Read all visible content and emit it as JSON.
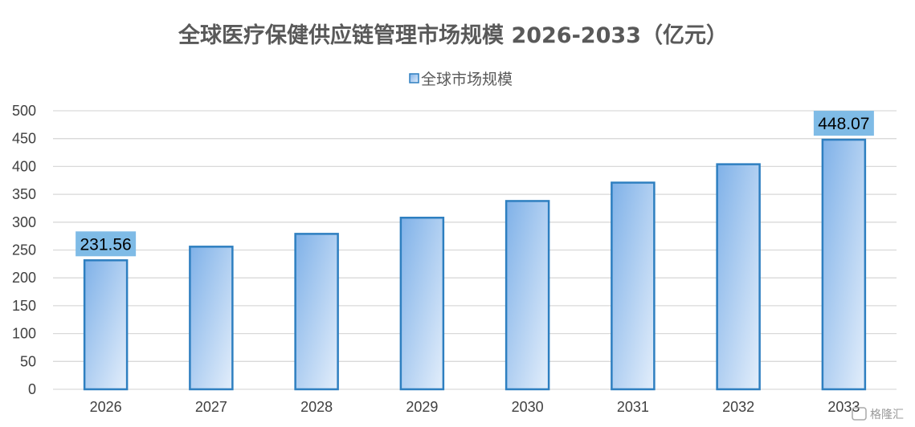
{
  "chart_data": {
    "type": "bar",
    "title": "全球医疗保健供应链管理市场规模 2026-2033（亿元）",
    "legend": "全球市场规模",
    "legend_position": "top",
    "xlabel": "",
    "ylabel": "",
    "categories": [
      "2026",
      "2027",
      "2028",
      "2029",
      "2030",
      "2031",
      "2032",
      "2033"
    ],
    "series": [
      {
        "name": "全球市场规模",
        "values": [
          231.56,
          256,
          279,
          308,
          338,
          371,
          404,
          448.07
        ]
      }
    ],
    "data_labels": {
      "0": "231.56",
      "7": "448.07"
    },
    "ylim": [
      0,
      500
    ],
    "yticks": [
      0,
      50,
      100,
      150,
      200,
      250,
      300,
      350,
      400,
      450,
      500
    ],
    "grid": true
  },
  "colors": {
    "bar_fill_top": "#7fb1e8",
    "bar_fill_bottom": "#e3eefb",
    "bar_border": "#2e7fc0",
    "label_bg": "#7fbbe6",
    "gridline": "#d9d9d9"
  },
  "watermark": "格隆汇"
}
